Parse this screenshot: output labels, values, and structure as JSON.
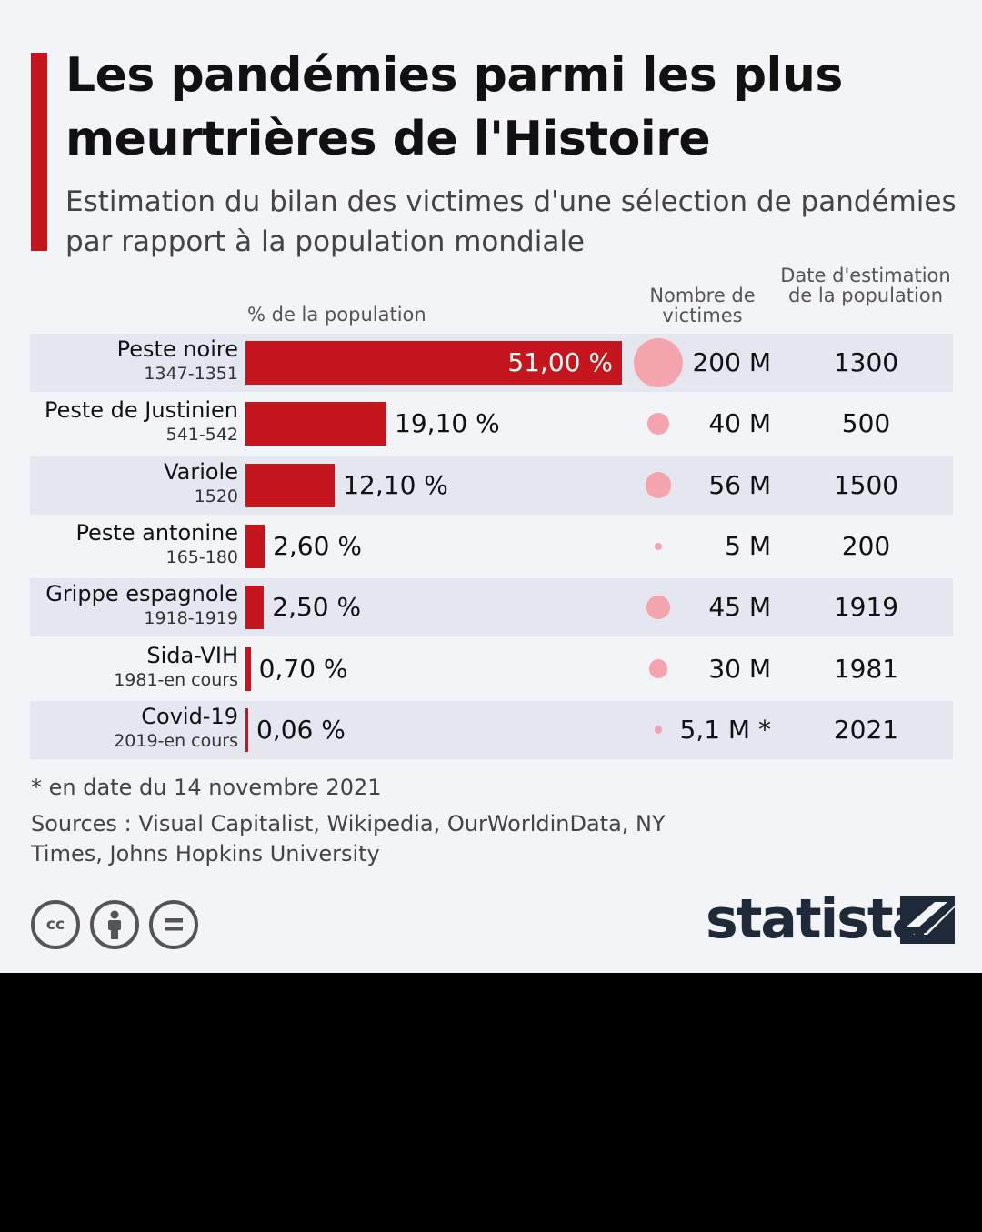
{
  "title": "Les pandémies parmi les plus meurtrières de l'Histoire",
  "subtitle": "Estimation du bilan des victimes d'une sélection de pandémies par rapport à la population mondiale",
  "columns": {
    "pct": "% de la population",
    "victims": "Nombre de victimes",
    "date": "Date d'estimation de la population"
  },
  "footnote": "* en date du 14 novembre 2021",
  "sources": "Sources : Visual Capitalist, Wikipedia, OurWorldinData, NY Times, Johns Hopkins University",
  "license_icons": [
    "cc",
    "by",
    "nd"
  ],
  "brand": "statista",
  "colors": {
    "bar": "#c4161c",
    "bubble": "#f3a4ad",
    "accent": "#c4161c"
  },
  "chart_data": {
    "type": "bar",
    "orientation": "horizontal",
    "title": "Les pandémies parmi les plus meurtrières de l'Histoire",
    "xlabel": "% de la population",
    "ylabel": "",
    "xlim": [
      0,
      51
    ],
    "categories": [
      "Peste noire",
      "Peste de Justinien",
      "Variole",
      "Peste antonine",
      "Grippe espagnole",
      "Sida-VIH",
      "Covid-19"
    ],
    "periods": [
      "1347-1351",
      "541-542",
      "1520",
      "165-180",
      "1918-1919",
      "1981-en cours",
      "2019-en cours"
    ],
    "values": [
      51.0,
      19.1,
      12.1,
      2.6,
      2.5,
      0.7,
      0.06
    ],
    "value_labels": [
      "51,00 %",
      "19,10 %",
      "12,10 %",
      "2,60 %",
      "2,50 %",
      "0,70 %",
      "0,06 %"
    ],
    "victims_millions": [
      200,
      40,
      56,
      5,
      45,
      30,
      5.1
    ],
    "victims_labels": [
      "200 M",
      "40 M",
      "56 M",
      "5 M",
      "45 M",
      "30 M",
      "5,1 M *"
    ],
    "estimation_dates": [
      "1300",
      "500",
      "1500",
      "200",
      "1919",
      "1981",
      "2021"
    ]
  }
}
